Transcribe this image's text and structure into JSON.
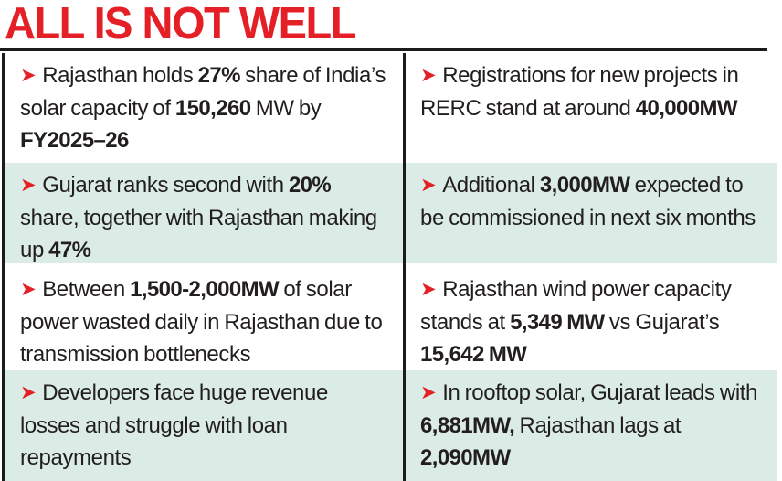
{
  "title": "ALL IS NOT WELL",
  "colors": {
    "accent_red": "#e41f25",
    "band_teal": "#dbece7",
    "text_dark": "#221e1f",
    "line_black": "#1b1b1b"
  },
  "bullet_icon": "red-right-arrowhead",
  "rows": [
    {
      "shaded": false,
      "left": {
        "segments": [
          {
            "text": "Rajasthan holds ",
            "bold": false
          },
          {
            "text": "27%",
            "bold": true
          },
          {
            "text": " share of India’s solar capacity of ",
            "bold": false
          },
          {
            "text": "150,260",
            "bold": true
          },
          {
            "text": " MW by ",
            "bold": false
          },
          {
            "text": "FY2025–26",
            "bold": true
          }
        ]
      },
      "right": {
        "segments": [
          {
            "text": "Registrations for new projects in RERC stand at around ",
            "bold": false
          },
          {
            "text": "40,000MW",
            "bold": true
          }
        ]
      }
    },
    {
      "shaded": true,
      "left": {
        "segments": [
          {
            "text": "Gujarat ranks second with ",
            "bold": false
          },
          {
            "text": "20%",
            "bold": true
          },
          {
            "text": " share, together with Rajasthan making up ",
            "bold": false
          },
          {
            "text": "47%",
            "bold": true
          }
        ]
      },
      "right": {
        "segments": [
          {
            "text": "Additional ",
            "bold": false
          },
          {
            "text": "3,000MW",
            "bold": true
          },
          {
            "text": " expected to be commissioned in next six months",
            "bold": false
          }
        ]
      }
    },
    {
      "shaded": false,
      "left": {
        "segments": [
          {
            "text": "Between ",
            "bold": false
          },
          {
            "text": "1,500-2,000MW",
            "bold": true
          },
          {
            "text": " of solar power wasted daily in Rajasthan due to transmission bottlenecks",
            "bold": false
          }
        ]
      },
      "right": {
        "segments": [
          {
            "text": "Rajasthan wind power capacity stands at ",
            "bold": false
          },
          {
            "text": "5,349 MW",
            "bold": true
          },
          {
            "text": " vs Gujarat’s ",
            "bold": false
          },
          {
            "text": "15,642 MW",
            "bold": true
          }
        ]
      }
    },
    {
      "shaded": true,
      "left": {
        "segments": [
          {
            "text": "Developers face huge revenue losses and struggle with loan repayments",
            "bold": false
          }
        ]
      },
      "right": {
        "segments": [
          {
            "text": "In rooftop solar, Gujarat leads with ",
            "bold": false
          },
          {
            "text": "6,881MW,",
            "bold": true
          },
          {
            "text": " Rajasthan lags at ",
            "bold": false
          },
          {
            "text": "2,090MW",
            "bold": true
          }
        ]
      }
    }
  ]
}
